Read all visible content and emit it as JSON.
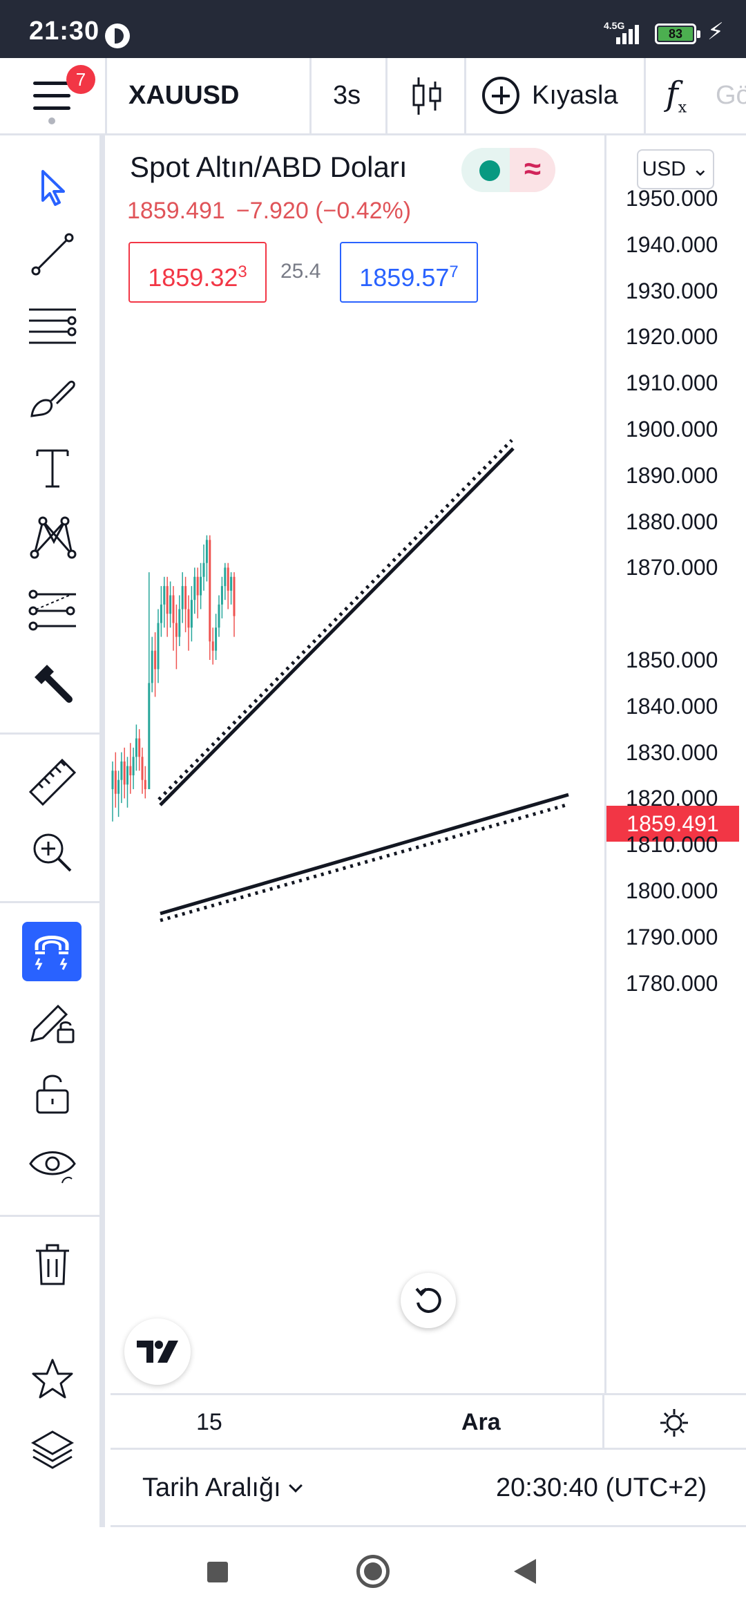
{
  "status_bar": {
    "time": "21:30",
    "network": "4.5G",
    "battery": "83"
  },
  "toolbar": {
    "notification_count": "7",
    "symbol": "XAUUSD",
    "interval": "3s",
    "compare_label": "Kıyasla",
    "indicators_label": "Gö"
  },
  "legend": {
    "title": "Spot Altın/ABD Doları",
    "last": "1859.491",
    "change": "−7.920 (−0.42%)",
    "sell_price_main": "1859.32",
    "sell_price_small": "3",
    "spread": "25.4",
    "buy_price_main": "1859.57",
    "buy_price_small": "7"
  },
  "price_axis": {
    "currency": "USD",
    "last_price_label": "1859.491",
    "ticks": [
      "1950.000",
      "1940.000",
      "1930.000",
      "1920.000",
      "1910.000",
      "1900.000",
      "1890.000",
      "1880.000",
      "1870.000",
      "1850.000",
      "1840.000",
      "1830.000",
      "1820.000",
      "1810.000",
      "1800.000",
      "1790.000",
      "1780.000"
    ]
  },
  "time_axis": {
    "tick_label": "15",
    "range_label": "Ara"
  },
  "bottom_bar": {
    "date_range_label": "Tarih Aralığı",
    "clock": "20:30:40 (UTC+2)"
  },
  "colors": {
    "up": "#26a69a",
    "down": "#ef5350",
    "accent": "#2962ff",
    "last_price_bg": "#f23645",
    "statusbar_bg": "#252a38"
  },
  "chart_data": {
    "type": "candlestick",
    "symbol": "XAUUSD",
    "y_range": [
      1775,
      1955
    ],
    "last_price": 1859.491,
    "candles": [
      [
        1822,
        1826,
        1815,
        1828
      ],
      [
        1826,
        1821,
        1818,
        1830
      ],
      [
        1821,
        1824,
        1816,
        1826
      ],
      [
        1824,
        1828,
        1819,
        1830
      ],
      [
        1828,
        1823,
        1820,
        1831
      ],
      [
        1823,
        1827,
        1818,
        1829
      ],
      [
        1827,
        1825,
        1821,
        1832
      ],
      [
        1825,
        1829,
        1822,
        1831
      ],
      [
        1829,
        1833,
        1826,
        1836
      ],
      [
        1833,
        1829,
        1826,
        1835
      ],
      [
        1829,
        1824,
        1821,
        1831
      ],
      [
        1824,
        1822,
        1820,
        1827
      ],
      [
        1822,
        1845,
        1822,
        1869
      ],
      [
        1845,
        1852,
        1843,
        1855
      ],
      [
        1852,
        1848,
        1842,
        1856
      ],
      [
        1848,
        1858,
        1845,
        1861
      ],
      [
        1858,
        1862,
        1855,
        1866
      ],
      [
        1862,
        1866,
        1857,
        1868
      ],
      [
        1866,
        1860,
        1855,
        1868
      ],
      [
        1860,
        1864,
        1857,
        1867
      ],
      [
        1864,
        1858,
        1852,
        1866
      ],
      [
        1858,
        1855,
        1848,
        1862
      ],
      [
        1855,
        1861,
        1853,
        1864
      ],
      [
        1861,
        1866,
        1858,
        1869
      ],
      [
        1866,
        1861,
        1856,
        1868
      ],
      [
        1861,
        1857,
        1852,
        1864
      ],
      [
        1857,
        1863,
        1854,
        1866
      ],
      [
        1863,
        1868,
        1860,
        1870
      ],
      [
        1868,
        1864,
        1859,
        1870
      ],
      [
        1864,
        1868,
        1861,
        1871
      ],
      [
        1868,
        1871,
        1865,
        1875
      ],
      [
        1871,
        1876,
        1867,
        1877
      ],
      [
        1876,
        1854,
        1850,
        1877
      ],
      [
        1854,
        1852,
        1849,
        1857
      ],
      [
        1852,
        1857,
        1850,
        1860
      ],
      [
        1857,
        1862,
        1855,
        1864
      ],
      [
        1862,
        1866,
        1859,
        1868
      ],
      [
        1866,
        1870,
        1863,
        1871
      ],
      [
        1870,
        1865,
        1861,
        1871
      ],
      [
        1865,
        1868,
        1862,
        1869
      ],
      [
        1868,
        1859.491,
        1855,
        1869
      ]
    ]
  }
}
